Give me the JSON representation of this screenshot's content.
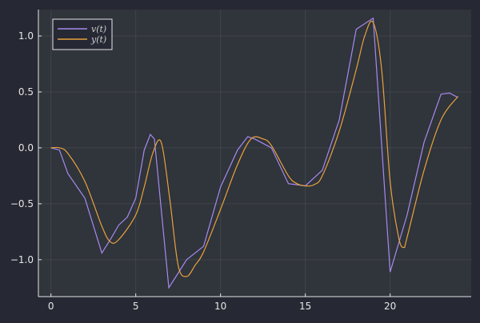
{
  "chart_data": {
    "type": "line",
    "title": "",
    "xlabel": "",
    "ylabel": "",
    "xlim": [
      -0.74,
      24.78
    ],
    "ylim": [
      -1.33,
      1.236
    ],
    "xticks": [
      0,
      5,
      10,
      15,
      20
    ],
    "xtick_labels": [
      "0",
      "5",
      "10",
      "15",
      "20"
    ],
    "yticks": [
      -1.0,
      -0.5,
      0.0,
      0.5,
      1.0
    ],
    "ytick_labels": [
      "−1.0",
      "−0.5",
      "0.0",
      "0.5",
      "1.0"
    ],
    "grid": true,
    "legend_position": "top-left",
    "background": "#262833",
    "plot_background": "#30343b",
    "series": [
      {
        "name": "v(t)",
        "color": "#a58af0",
        "x": [
          0,
          0.5,
          1,
          2,
          3,
          3.5,
          4,
          4.5,
          5,
          5.5,
          5.86,
          6.1,
          6.95,
          7.5,
          8,
          9,
          10,
          11,
          11.6,
          12,
          13,
          14,
          15,
          16,
          17,
          18,
          19,
          20,
          21,
          22,
          23,
          23.5,
          24
        ],
        "y": [
          0,
          -0.02,
          -0.23,
          -0.45,
          -0.94,
          -0.82,
          -0.69,
          -0.62,
          -0.45,
          -0.02,
          0.12,
          0.08,
          -1.25,
          -1.12,
          -1.0,
          -0.88,
          -0.35,
          -0.02,
          0.1,
          0.08,
          0.0,
          -0.32,
          -0.34,
          -0.2,
          0.25,
          1.06,
          1.16,
          -1.11,
          -0.6,
          0.05,
          0.48,
          0.49,
          0.45
        ]
      },
      {
        "name": "y(t)",
        "color": "#e8a23c",
        "x": [
          0,
          0.5,
          1,
          2,
          3,
          3.5,
          4,
          5,
          5.5,
          6,
          6.5,
          7,
          7.5,
          8,
          8.5,
          9,
          10,
          11,
          11.8,
          12.5,
          13,
          14,
          14.5,
          15,
          15.5,
          16,
          17,
          18,
          18.5,
          19,
          19.5,
          20,
          20.5,
          20.8,
          21,
          22,
          23,
          24
        ],
        "y": [
          0,
          0,
          -0.05,
          -0.3,
          -0.7,
          -0.84,
          -0.82,
          -0.6,
          -0.35,
          -0.05,
          0.05,
          -0.45,
          -1.05,
          -1.15,
          -1.05,
          -0.93,
          -0.55,
          -0.15,
          0.08,
          0.08,
          0.02,
          -0.25,
          -0.32,
          -0.34,
          -0.33,
          -0.25,
          0.15,
          0.7,
          1.0,
          1.12,
          0.7,
          -0.3,
          -0.8,
          -0.89,
          -0.8,
          -0.2,
          0.25,
          0.46
        ]
      }
    ]
  }
}
